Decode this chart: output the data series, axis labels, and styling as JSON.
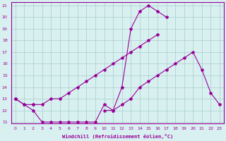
{
  "xlabel": "Windchill (Refroidissement éolien,°C)",
  "x": [
    0,
    1,
    2,
    3,
    4,
    5,
    6,
    7,
    8,
    9,
    10,
    11,
    12,
    13,
    14,
    15,
    16,
    17,
    18,
    19,
    20,
    21,
    22,
    23
  ],
  "line1": [
    13,
    12.5,
    12,
    11,
    11,
    11,
    11,
    11,
    11,
    11,
    12.5,
    12,
    14,
    19,
    20.5,
    21,
    20.5,
    20,
    null,
    null,
    null,
    null,
    null,
    null
  ],
  "line2": [
    13,
    12.5,
    12.5,
    12.5,
    13,
    13,
    13.5,
    14,
    14.5,
    15,
    15.5,
    16,
    16.5,
    17,
    17.5,
    18,
    18.5,
    null,
    null,
    null,
    null,
    null,
    null,
    null
  ],
  "line3": [
    13,
    null,
    12.5,
    null,
    null,
    null,
    null,
    null,
    null,
    null,
    12,
    12,
    12.5,
    13,
    14,
    14.5,
    15,
    15.5,
    16,
    16.5,
    17,
    15.5,
    13.5,
    12.5
  ],
  "color": "#990099",
  "bg_color": "#d8f0f0",
  "grid_color": "#aacccc",
  "ylim": [
    11,
    21
  ],
  "xlim": [
    -0.5,
    23.5
  ],
  "yticks": [
    11,
    12,
    13,
    14,
    15,
    16,
    17,
    18,
    19,
    20,
    21
  ],
  "xticks": [
    0,
    1,
    2,
    3,
    4,
    5,
    6,
    7,
    8,
    9,
    10,
    11,
    12,
    13,
    14,
    15,
    16,
    17,
    18,
    19,
    20,
    21,
    22,
    23
  ]
}
